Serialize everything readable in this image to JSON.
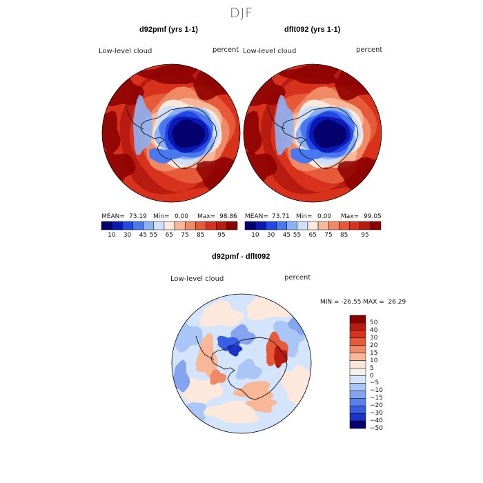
{
  "figure": {
    "title": "DJF"
  },
  "colors": {
    "abs_scale": [
      "#04006e",
      "#0a18b4",
      "#2448e4",
      "#4a78f0",
      "#8cb0f4",
      "#cfe0fa",
      "#fde8dc",
      "#f8b898",
      "#f08a66",
      "#e65a3a",
      "#d8321c",
      "#b81c10",
      "#8a0000"
    ],
    "diff_scale": [
      "#8a0000",
      "#b81c10",
      "#d8321c",
      "#e65a3a",
      "#f08a66",
      "#f8b898",
      "#fde8dc",
      "#f6f0ea",
      "#d4e4fa",
      "#aac6f6",
      "#84a4f0",
      "#5a80ea",
      "#3a5ee2",
      "#1a34c8",
      "#04006e"
    ],
    "coast": "#111111"
  },
  "chart_data": [
    {
      "type": "heatmap",
      "projection": "south-polar-stereographic",
      "title": "d92pmf (yrs 1-1)",
      "variable": "Low-level cloud",
      "units": "percent",
      "stats": {
        "mean_label": "MEAN=",
        "mean": "73.19",
        "min_label": "Min=",
        "min": "0.00",
        "max_label": "Max=",
        "max": "98.86"
      },
      "levels": [
        10,
        30,
        45,
        55,
        65,
        75,
        85,
        95
      ],
      "tick_labels": [
        "10",
        "30",
        "45",
        "55",
        "65",
        "75",
        "85",
        "95"
      ]
    },
    {
      "type": "heatmap",
      "projection": "south-polar-stereographic",
      "title": "dflt092 (yrs 1-1)",
      "variable": "Low-level cloud",
      "units": "percent",
      "stats": {
        "mean_label": "MEAN=",
        "mean": "73.71",
        "min_label": "Min=",
        "min": "0.00",
        "max_label": "Max=",
        "max": "99.05"
      },
      "levels": [
        10,
        30,
        45,
        55,
        65,
        75,
        85,
        95
      ],
      "tick_labels": [
        "10",
        "30",
        "45",
        "55",
        "65",
        "75",
        "85",
        "95"
      ]
    },
    {
      "type": "heatmap",
      "projection": "south-polar-stereographic",
      "title": "d92pmf - dflt092",
      "variable": "Low-level cloud",
      "units": "percent",
      "stats_text": "MIN = -26.55 MAX =  26.29",
      "stats": {
        "min": -26.55,
        "max": 26.29
      },
      "levels": [
        50,
        40,
        30,
        20,
        15,
        10,
        5,
        0,
        -5,
        -10,
        -15,
        -20,
        -30,
        -40,
        -50
      ],
      "tick_labels": [
        "50",
        "40",
        "30",
        "20",
        "15",
        "10",
        "5",
        "0",
        "−5",
        "−10",
        "−15",
        "−20",
        "−30",
        "−40",
        "−50"
      ]
    }
  ]
}
